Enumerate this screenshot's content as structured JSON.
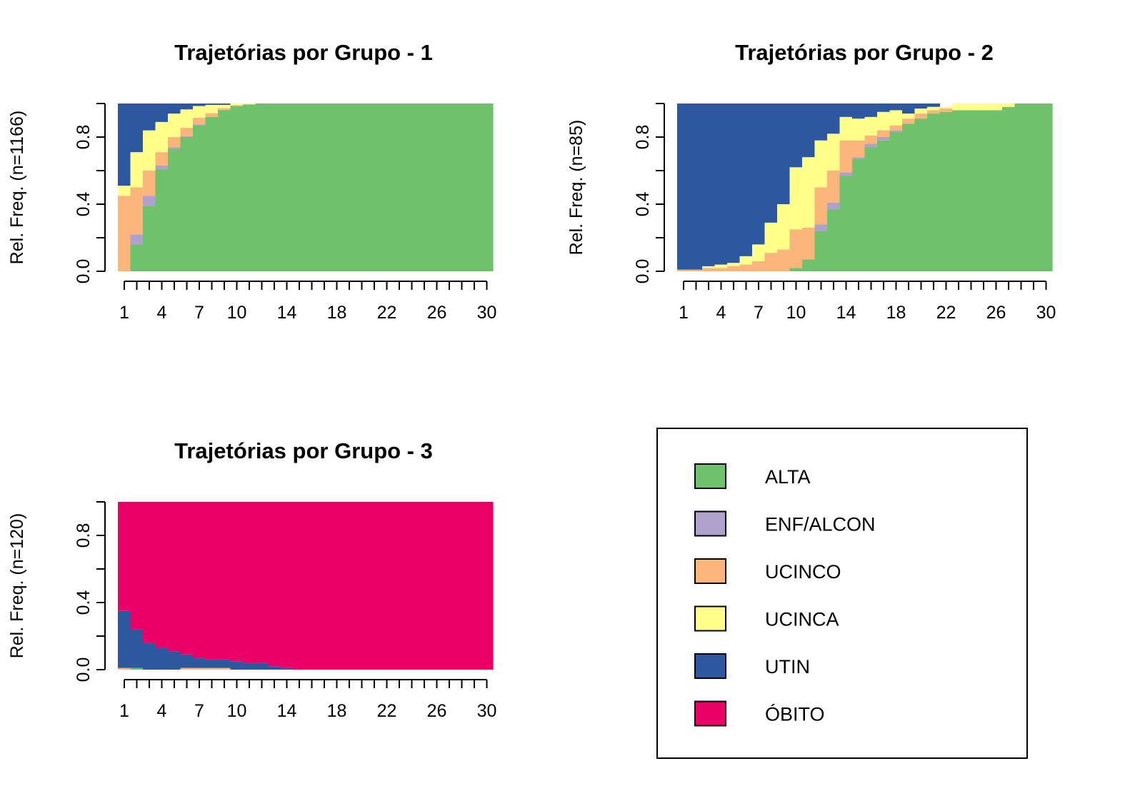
{
  "legend": {
    "states": [
      {
        "label": "ALTA",
        "color": "#6EC26B"
      },
      {
        "label": "ENF/ALCON",
        "color": "#AFA0CC"
      },
      {
        "label": "UCINCO",
        "color": "#FBB57A"
      },
      {
        "label": "UCINCA",
        "color": "#FFFF8A"
      },
      {
        "label": "UTIN",
        "color": "#2D58A0"
      },
      {
        "label": "ÓBITO",
        "color": "#EB006A"
      }
    ]
  },
  "chart_data": [
    {
      "type": "area",
      "title": "Trajetórias por Grupo -  1",
      "ylabel": "Rel. Freq. (n=1166)",
      "xlim": [
        1,
        30
      ],
      "ylim": [
        0,
        1
      ],
      "x_tick_labels": [
        "1",
        "4",
        "7",
        "10",
        "14",
        "18",
        "22",
        "26",
        "30"
      ],
      "y_tick_labels": [
        "0.0",
        "0.4",
        "0.8"
      ],
      "x": [
        1,
        2,
        3,
        4,
        5,
        6,
        7,
        8,
        9,
        10,
        11,
        12,
        13,
        14,
        15,
        16,
        17,
        18,
        19,
        20,
        21,
        22,
        23,
        24,
        25,
        26,
        27,
        28,
        29,
        30
      ],
      "series": [
        {
          "name": "ALTA",
          "values": [
            0.0,
            0.16,
            0.39,
            0.61,
            0.73,
            0.8,
            0.87,
            0.92,
            0.96,
            0.985,
            0.995,
            1,
            1,
            1,
            1,
            1,
            1,
            1,
            1,
            1,
            1,
            1,
            1,
            1,
            1,
            1,
            1,
            1,
            1,
            1
          ]
        },
        {
          "name": "ENF/ALCON",
          "values": [
            0.0,
            0.06,
            0.06,
            0.02,
            0.01,
            0.005,
            0.005,
            0.002,
            0.002,
            0,
            0,
            0,
            0,
            0,
            0,
            0,
            0,
            0,
            0,
            0,
            0,
            0,
            0,
            0,
            0,
            0,
            0,
            0,
            0,
            0
          ]
        },
        {
          "name": "UCINCO",
          "values": [
            0.45,
            0.28,
            0.15,
            0.08,
            0.06,
            0.05,
            0.04,
            0.02,
            0.01,
            0.005,
            0,
            0,
            0,
            0,
            0,
            0,
            0,
            0,
            0,
            0,
            0,
            0,
            0,
            0,
            0,
            0,
            0,
            0,
            0,
            0
          ]
        },
        {
          "name": "UCINCA",
          "values": [
            0.06,
            0.21,
            0.24,
            0.18,
            0.14,
            0.11,
            0.07,
            0.05,
            0.02,
            0.01,
            0.005,
            0,
            0,
            0,
            0,
            0,
            0,
            0,
            0,
            0,
            0,
            0,
            0,
            0,
            0,
            0,
            0,
            0,
            0,
            0
          ]
        },
        {
          "name": "UTIN",
          "values": [
            0.49,
            0.29,
            0.16,
            0.11,
            0.06,
            0.035,
            0.015,
            0.008,
            0.008,
            0,
            0,
            0,
            0,
            0,
            0,
            0,
            0,
            0,
            0,
            0,
            0,
            0,
            0,
            0,
            0,
            0,
            0,
            0,
            0,
            0
          ]
        },
        {
          "name": "ÓBITO",
          "values": [
            0,
            0,
            0,
            0,
            0,
            0,
            0,
            0,
            0,
            0,
            0,
            0,
            0,
            0,
            0,
            0,
            0,
            0,
            0,
            0,
            0,
            0,
            0,
            0,
            0,
            0,
            0,
            0,
            0,
            0
          ]
        }
      ]
    },
    {
      "type": "area",
      "title": "Trajetórias por Grupo -  2",
      "ylabel": "Rel. Freq. (n=85)",
      "xlim": [
        1,
        30
      ],
      "ylim": [
        0,
        1
      ],
      "x_tick_labels": [
        "1",
        "4",
        "7",
        "10",
        "14",
        "18",
        "22",
        "26",
        "30"
      ],
      "y_tick_labels": [
        "0.0",
        "0.4",
        "0.8"
      ],
      "x": [
        1,
        2,
        3,
        4,
        5,
        6,
        7,
        8,
        9,
        10,
        11,
        12,
        13,
        14,
        15,
        16,
        17,
        18,
        19,
        20,
        21,
        22,
        23,
        24,
        25,
        26,
        27,
        28,
        29,
        30
      ],
      "series": [
        {
          "name": "ALTA",
          "values": [
            0,
            0,
            0,
            0,
            0,
            0,
            0,
            0,
            0,
            0.02,
            0.07,
            0.24,
            0.37,
            0.57,
            0.67,
            0.74,
            0.78,
            0.83,
            0.88,
            0.91,
            0.94,
            0.95,
            0.96,
            0.96,
            0.96,
            0.96,
            0.98,
            1,
            1,
            1
          ]
        },
        {
          "name": "ENF/ALCON",
          "values": [
            0,
            0,
            0,
            0,
            0,
            0,
            0,
            0,
            0,
            0,
            0,
            0.04,
            0.04,
            0.02,
            0.01,
            0.02,
            0.02,
            0.01,
            0,
            0,
            0,
            0,
            0,
            0,
            0,
            0,
            0,
            0,
            0,
            0
          ]
        },
        {
          "name": "UCINCO",
          "values": [
            0.01,
            0.01,
            0.02,
            0.02,
            0.03,
            0.04,
            0.06,
            0.11,
            0.13,
            0.23,
            0.19,
            0.22,
            0.19,
            0.19,
            0.1,
            0.05,
            0.04,
            0.03,
            0.03,
            0.03,
            0.02,
            0.02,
            0,
            0,
            0,
            0,
            0,
            0,
            0,
            0
          ]
        },
        {
          "name": "UCINCA",
          "values": [
            0,
            0,
            0.01,
            0.02,
            0.02,
            0.05,
            0.1,
            0.18,
            0.27,
            0.37,
            0.42,
            0.28,
            0.22,
            0.14,
            0.13,
            0.11,
            0.11,
            0.09,
            0.03,
            0.03,
            0.02,
            0.01,
            0.04,
            0.04,
            0.04,
            0.04,
            0.02,
            0,
            0,
            0
          ]
        },
        {
          "name": "UTIN",
          "values": [
            0.99,
            0.99,
            0.97,
            0.96,
            0.95,
            0.91,
            0.84,
            0.71,
            0.6,
            0.38,
            0.32,
            0.22,
            0.18,
            0.08,
            0.09,
            0.08,
            0.05,
            0.04,
            0.06,
            0.03,
            0.02,
            0,
            0,
            0,
            0,
            0,
            0,
            0,
            0,
            0
          ]
        },
        {
          "name": "ÓBITO",
          "values": [
            0,
            0,
            0,
            0,
            0,
            0,
            0,
            0,
            0,
            0,
            0,
            0,
            0,
            0,
            0,
            0,
            0,
            0,
            0,
            0,
            0,
            0,
            0,
            0,
            0,
            0,
            0,
            0,
            0,
            0
          ]
        }
      ]
    },
    {
      "type": "area",
      "title": "Trajetórias por Grupo -  3",
      "ylabel": "Rel. Freq. (n=120)",
      "xlim": [
        1,
        30
      ],
      "ylim": [
        0,
        1
      ],
      "x_tick_labels": [
        "1",
        "4",
        "7",
        "10",
        "14",
        "18",
        "22",
        "26",
        "30"
      ],
      "y_tick_labels": [
        "0.0",
        "0.4",
        "0.8"
      ],
      "x": [
        1,
        2,
        3,
        4,
        5,
        6,
        7,
        8,
        9,
        10,
        11,
        12,
        13,
        14,
        15,
        16,
        17,
        18,
        19,
        20,
        21,
        22,
        23,
        24,
        25,
        26,
        27,
        28,
        29,
        30
      ],
      "series": [
        {
          "name": "ALTA",
          "values": [
            0,
            0.01,
            0,
            0,
            0,
            0,
            0,
            0,
            0,
            0,
            0,
            0,
            0,
            0,
            0,
            0,
            0,
            0,
            0,
            0,
            0,
            0,
            0,
            0,
            0,
            0,
            0,
            0,
            0,
            0
          ]
        },
        {
          "name": "ENF/ALCON",
          "values": [
            0,
            0,
            0,
            0,
            0,
            0,
            0,
            0,
            0,
            0,
            0,
            0,
            0,
            0,
            0,
            0,
            0,
            0,
            0,
            0,
            0,
            0,
            0,
            0,
            0,
            0,
            0,
            0,
            0,
            0
          ]
        },
        {
          "name": "UCINCO",
          "values": [
            0.01,
            0,
            0,
            0,
            0,
            0.01,
            0.01,
            0.01,
            0.01,
            0,
            0,
            0,
            0,
            0,
            0,
            0,
            0,
            0,
            0,
            0,
            0,
            0,
            0,
            0,
            0,
            0,
            0,
            0,
            0,
            0
          ]
        },
        {
          "name": "UCINCA",
          "values": [
            0,
            0,
            0,
            0,
            0,
            0,
            0,
            0,
            0,
            0,
            0,
            0,
            0,
            0,
            0,
            0,
            0,
            0,
            0,
            0,
            0,
            0,
            0,
            0,
            0,
            0,
            0,
            0,
            0,
            0
          ]
        },
        {
          "name": "UTIN",
          "values": [
            0.34,
            0.23,
            0.16,
            0.13,
            0.11,
            0.08,
            0.06,
            0.05,
            0.05,
            0.05,
            0.04,
            0.04,
            0.02,
            0.01,
            0,
            0,
            0,
            0,
            0,
            0,
            0,
            0,
            0,
            0,
            0,
            0,
            0,
            0,
            0,
            0
          ]
        },
        {
          "name": "ÓBITO",
          "values": [
            0.65,
            0.76,
            0.84,
            0.87,
            0.89,
            0.91,
            0.93,
            0.94,
            0.94,
            0.95,
            0.96,
            0.96,
            0.98,
            0.99,
            1,
            1,
            1,
            1,
            1,
            1,
            1,
            1,
            1,
            1,
            1,
            1,
            1,
            1,
            1,
            1
          ]
        }
      ]
    }
  ]
}
